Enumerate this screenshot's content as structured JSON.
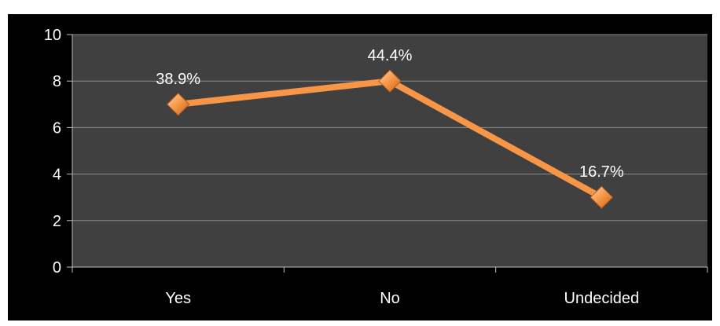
{
  "chart_data": {
    "type": "line",
    "categories": [
      "Yes",
      "No",
      "Undecided"
    ],
    "series": [
      {
        "values": [
          7,
          8,
          3
        ],
        "data_labels": [
          "38.9%",
          "44.4%",
          "16.7%"
        ],
        "color": "#f79646"
      }
    ],
    "ylim": [
      0,
      10
    ],
    "yticks": [
      "0",
      "2",
      "4",
      "6",
      "8",
      "10"
    ],
    "grid": true,
    "legend": "none",
    "colors": {
      "frame_background": "#000000",
      "plot_background": "#404040",
      "gridline": "#8c8c8c",
      "axis": "#bfbfbf",
      "text": "#ffffff",
      "marker_fill": "#f79646",
      "marker_stroke": "#b35a1f"
    }
  }
}
